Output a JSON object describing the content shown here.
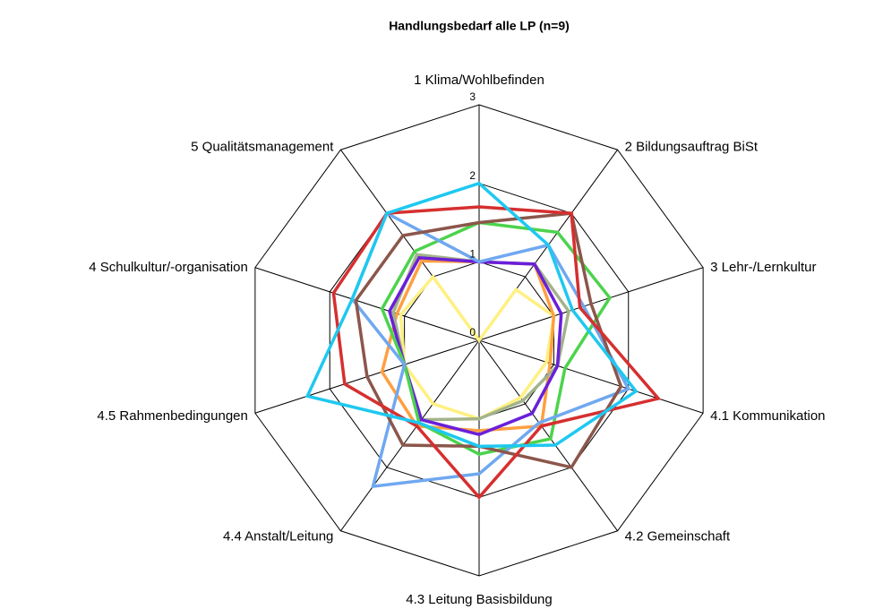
{
  "chart_data": {
    "type": "radar",
    "title": "Handlungsbedarf alle LP (n=9)",
    "categories": [
      "1 Klima/Wohlbefinden",
      "2 Bildungsauftrag BiSt",
      "3 Lehr-/Lernkultur",
      "4.1 Kommunikation",
      "4.2 Gemeinschaft",
      "4.3 Leitung Basisbildung",
      "4.4 Anstalt/Leitung",
      "4.5 Rahmenbedingungen",
      "4 Schulkultur/-organisation",
      "5 Qualitätsmanagement"
    ],
    "series": [
      {
        "color": "#fff080",
        "values": [
          0,
          0.8,
          1.0,
          0.9,
          0.9,
          1.0,
          1.0,
          1.0,
          1.05,
          1.0
        ]
      },
      {
        "color": "#ff9f40",
        "values": [
          1,
          1.2,
          1.0,
          0.95,
          1.35,
          1.15,
          1.35,
          1.3,
          1.1,
          1.25
        ]
      },
      {
        "color": "#a3b38a",
        "values": [
          1,
          1.2,
          1.2,
          1.05,
          0.95,
          1.0,
          1.25,
          1.0,
          1.15,
          1.35
        ]
      },
      {
        "color": "#6a1fd9",
        "values": [
          1,
          1.2,
          1.1,
          1.05,
          1.15,
          1.2,
          1.25,
          1.0,
          1.2,
          1.3
        ]
      },
      {
        "color": "#4cd34c",
        "values": [
          1.5,
          1.7,
          1.75,
          1.15,
          1.55,
          1.45,
          1.3,
          1.0,
          1.3,
          1.4
        ]
      },
      {
        "color": "#6fa8f0",
        "values": [
          1,
          1.5,
          1.4,
          2.0,
          1.3,
          1.7,
          2.3,
          1.0,
          1.7,
          2.0
        ]
      },
      {
        "color": "#8c564b",
        "values": [
          1.5,
          2.0,
          1.5,
          1.9,
          2.0,
          1.35,
          1.65,
          1.5,
          1.65,
          1.65
        ]
      },
      {
        "color": "#d62f2f",
        "values": [
          1.7,
          2.0,
          1.35,
          2.4,
          1.35,
          2.0,
          1.35,
          1.8,
          1.95,
          2.0
        ]
      },
      {
        "color": "#1ec8f0",
        "values": [
          2.0,
          1.5,
          1.25,
          2.1,
          1.65,
          1.35,
          1.3,
          2.3,
          1.7,
          2.0
        ]
      }
    ],
    "ylim": [
      0,
      3
    ],
    "yticks": [
      0,
      1,
      2,
      3
    ],
    "grid": true
  }
}
